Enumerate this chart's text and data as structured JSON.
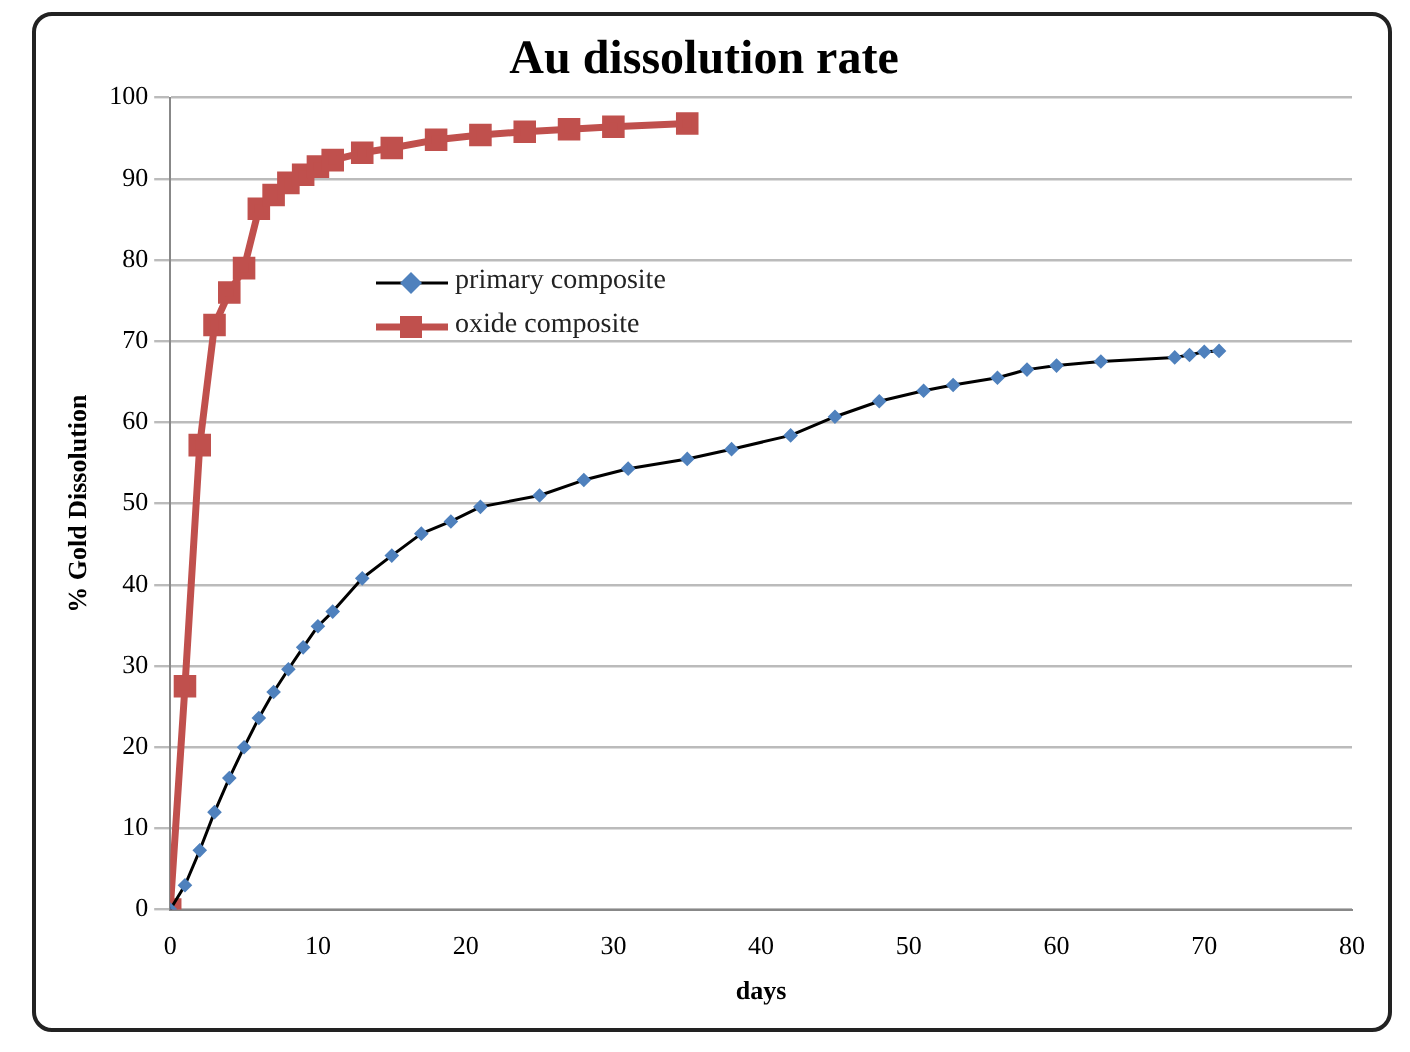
{
  "chart_data": {
    "type": "line",
    "title": "Au dissolution rate",
    "xlabel": "days",
    "ylabel": "% Gold Dissolution",
    "xlim": [
      0,
      80
    ],
    "xticks": [
      0,
      10,
      20,
      30,
      40,
      50,
      60,
      70,
      80
    ],
    "ylim": [
      0,
      100
    ],
    "yticks": [
      0,
      10,
      20,
      30,
      40,
      50,
      60,
      70,
      80,
      90,
      100
    ],
    "grid": "y",
    "legend": "left",
    "series": [
      {
        "name": "primary composite",
        "color": "#4f81bd",
        "marker": "diamond",
        "x": [
          0,
          1,
          2,
          3,
          4,
          5,
          6,
          7,
          8,
          9,
          10,
          11,
          13,
          15,
          17,
          19,
          21,
          25,
          28,
          31,
          35,
          38,
          42,
          45,
          48,
          51,
          53,
          56,
          58,
          60,
          63,
          68,
          69,
          70,
          71
        ],
        "values": [
          0,
          3,
          7.3,
          12,
          16.2,
          20,
          23.6,
          26.8,
          29.6,
          32.3,
          34.9,
          36.7,
          40.8,
          43.6,
          46.3,
          47.8,
          49.6,
          51,
          52.9,
          54.3,
          55.5,
          56.7,
          58.4,
          60.7,
          62.6,
          63.9,
          64.6,
          65.5,
          66.5,
          67,
          67.5,
          68,
          68.3,
          68.7,
          68.8
        ]
      },
      {
        "name": "oxide composite",
        "color": "#c0504d",
        "marker": "square",
        "x": [
          0,
          1,
          2,
          3,
          4,
          5,
          6,
          7,
          8,
          9,
          10,
          11,
          13,
          15,
          18,
          21,
          24,
          27,
          30,
          35
        ],
        "values": [
          0,
          27.5,
          57.2,
          72,
          76,
          79,
          86.3,
          88,
          89.5,
          90.5,
          91.5,
          92.3,
          93.2,
          93.8,
          94.8,
          95.4,
          95.8,
          96.1,
          96.4,
          96.8
        ]
      }
    ]
  }
}
